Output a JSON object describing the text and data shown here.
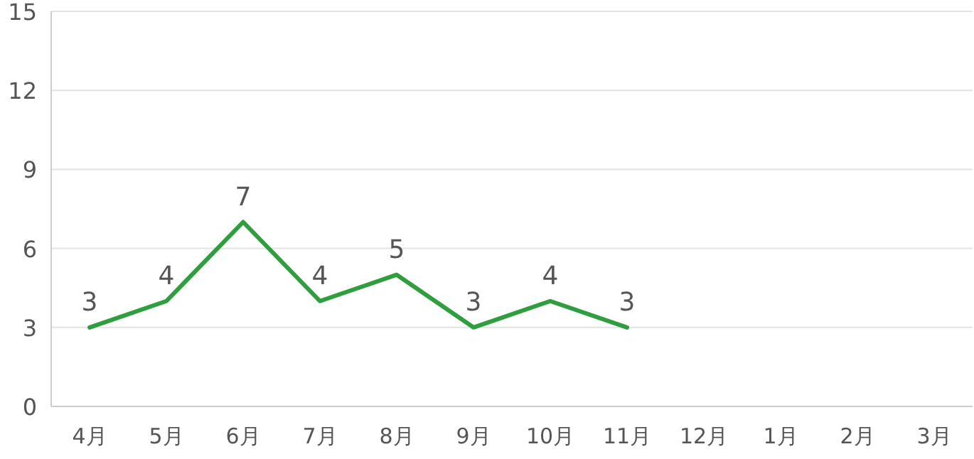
{
  "chart_data": {
    "type": "line",
    "categories": [
      "4月",
      "5月",
      "6月",
      "7月",
      "8月",
      "9月",
      "10月",
      "11月",
      "12月",
      "1月",
      "2月",
      "3月"
    ],
    "series": [
      {
        "color": "#2e9e3e",
        "values": [
          3,
          4,
          7,
          4,
          5,
          3,
          4,
          3,
          null,
          null,
          null,
          null
        ]
      }
    ],
    "ylim": [
      0,
      15
    ],
    "yticks": [
      0,
      3,
      6,
      9,
      12,
      15
    ],
    "grid": "y",
    "data_labels": true,
    "marker": "none",
    "line_style": "solid"
  }
}
